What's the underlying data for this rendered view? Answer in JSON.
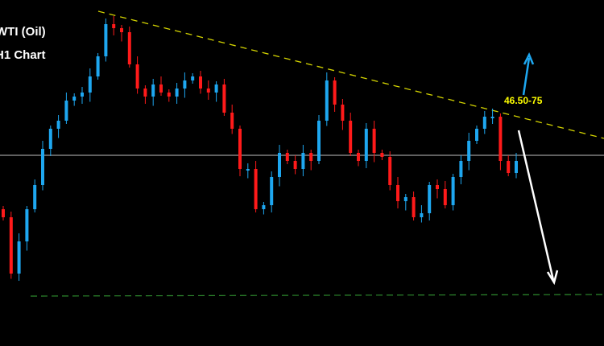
{
  "chart_data": {
    "type": "candlestick",
    "title": "WTI (Oil)",
    "subtitle": "H1 Chart",
    "closes": [
      45.3,
      44.6,
      45.0,
      45.4,
      45.7,
      46.15,
      46.4,
      46.5,
      46.75,
      46.8,
      46.85,
      47.05,
      47.3,
      47.7,
      47.65,
      47.6,
      47.2,
      46.9,
      46.8,
      46.95,
      46.85,
      46.8,
      46.9,
      47.0,
      47.05,
      46.9,
      46.85,
      46.95,
      46.6,
      46.4,
      45.9,
      45.9,
      45.4,
      45.45,
      45.8,
      46.1,
      46.0,
      45.9,
      46.1,
      46.0,
      46.5,
      47.0,
      46.7,
      46.5,
      46.1,
      46.0,
      46.4,
      46.1,
      46.05,
      45.7,
      45.5,
      45.55,
      45.3,
      45.35,
      45.7,
      45.65,
      45.45,
      45.8,
      46.0,
      46.25,
      46.4,
      46.55,
      46.55,
      46.0,
      45.85,
      46.0
    ],
    "annotations": {
      "target_label": "46.50-75",
      "resistance_trendline": [
        47.86,
        46.28
      ],
      "horizontal_level": 46.07,
      "support_level": 44.32
    },
    "colors": {
      "up": "#1ea7f0",
      "down": "#ff1a1a",
      "trendline": "#d4d400",
      "level": "#808080",
      "support": "#2e8b2e",
      "label": "#ffff00",
      "up_arrow": "#1ea7f0",
      "down_arrow": "#ffffff"
    },
    "grid": false
  }
}
